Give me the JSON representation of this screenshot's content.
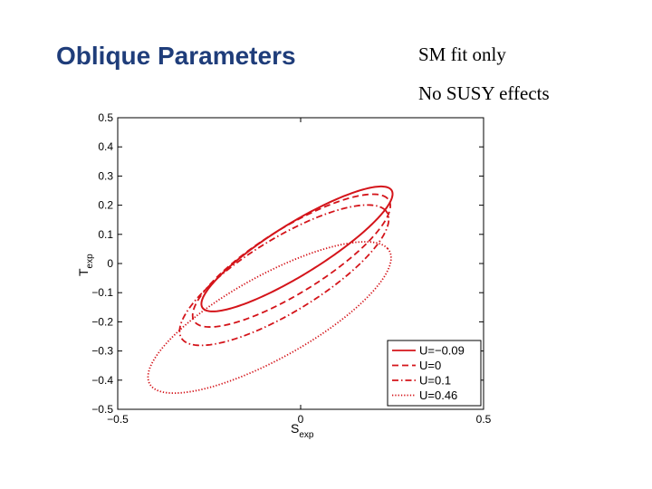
{
  "slide": {
    "title": "Oblique Parameters",
    "notes": [
      "SM fit only",
      "No SUSY effects"
    ]
  },
  "colors": {
    "title": "#1f3d7a",
    "curve": "#d4141a",
    "axis": "#000000"
  },
  "chart_data": {
    "type": "line",
    "title": "",
    "xlabel": "S",
    "xlabel_sub": "exp",
    "ylabel": "T",
    "ylabel_sub": "exp",
    "xlim": [
      -0.5,
      0.5
    ],
    "ylim": [
      -0.5,
      0.5
    ],
    "xticks": [
      -0.5,
      0,
      0.5
    ],
    "xtick_labels": [
      "−0.5",
      "0",
      "0.5"
    ],
    "yticks": [
      0.5,
      0.4,
      0.3,
      0.2,
      0.1,
      0,
      -0.1,
      -0.2,
      -0.3,
      -0.4,
      -0.5
    ],
    "ytick_labels": [
      "0.5",
      "0.4",
      "0.3",
      "0.2",
      "0.1",
      "0",
      "−0.1",
      "−0.2",
      "−0.3",
      "−0.4",
      "−0.5"
    ],
    "grid": false,
    "legend_position": "bottom-right",
    "series": [
      {
        "name": "U=−0.09",
        "style": "solid",
        "ellipse": {
          "center": [
            -0.01,
            0.05
          ],
          "semi_major": 0.328,
          "semi_minor": 0.081,
          "angle_deg": 38.6
        }
      },
      {
        "name": "U=0",
        "style": "dashed",
        "ellipse": {
          "center": [
            -0.025,
            0.01
          ],
          "semi_major": 0.338,
          "semi_minor": 0.103,
          "angle_deg": 39.1
        }
      },
      {
        "name": "U=0.1",
        "style": "dashdot",
        "ellipse": {
          "center": [
            -0.045,
            -0.04
          ],
          "semi_major": 0.355,
          "semi_minor": 0.117,
          "angle_deg": 38.9
        }
      },
      {
        "name": "U=0.46",
        "style": "dotted",
        "ellipse": {
          "center": [
            -0.085,
            -0.185
          ],
          "semi_major": 0.4,
          "semi_minor": 0.133,
          "angle_deg": 36.2
        }
      }
    ]
  }
}
